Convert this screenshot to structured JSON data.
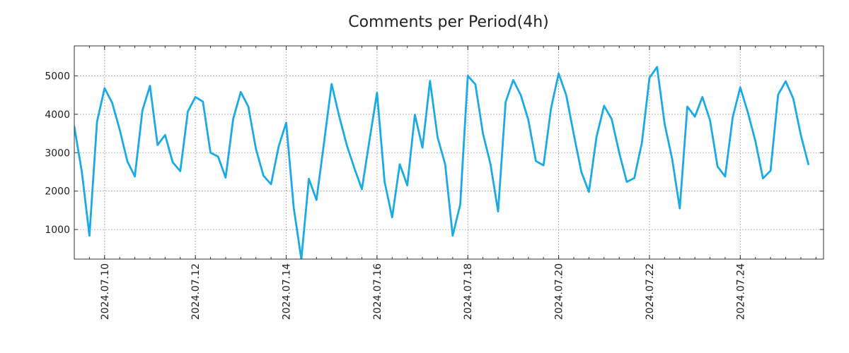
{
  "chart_data": {
    "type": "line",
    "title": "Comments per Period(4h)",
    "xlabel": "",
    "ylabel": "",
    "grid": true,
    "xlim": [
      "2024-07-09 08:00",
      "2024-07-25 20:00"
    ],
    "ylim": [
      230,
      5780
    ],
    "yticks": [
      1000,
      2000,
      3000,
      4000,
      5000
    ],
    "xticks": [
      "2024.07.10",
      "2024.07.12",
      "2024.07.14",
      "2024.07.16",
      "2024.07.18",
      "2024.07.20",
      "2024.07.22",
      "2024.07.24"
    ],
    "series": [
      {
        "name": "comments",
        "color": "#1aabe6",
        "interval_hours": 4,
        "start": "2024-07-09 08:00",
        "values": [
          3680,
          2500,
          840,
          3800,
          4680,
          4300,
          3600,
          2780,
          2380,
          4100,
          4740,
          3200,
          3460,
          2750,
          2520,
          4070,
          4450,
          4330,
          3000,
          2900,
          2350,
          3880,
          4580,
          4200,
          3100,
          2400,
          2180,
          3160,
          3780,
          1560,
          230,
          2320,
          1770,
          3260,
          4790,
          3950,
          3200,
          2600,
          2050,
          3320,
          4560,
          2240,
          1320,
          2700,
          2150,
          3990,
          3130,
          4870,
          3400,
          2700,
          840,
          1650,
          5000,
          4780,
          3500,
          2700,
          1470,
          4320,
          4890,
          4500,
          3850,
          2780,
          2670,
          4160,
          5060,
          4500,
          3480,
          2500,
          1980,
          3410,
          4220,
          3880,
          3000,
          2240,
          2340,
          3260,
          4950,
          5230,
          3750,
          2830,
          1550,
          4200,
          3940,
          4450,
          3850,
          2640,
          2380,
          3920,
          4700,
          4050,
          3300,
          2330,
          2530,
          4510,
          4860,
          4410,
          3460,
          2700
        ]
      }
    ]
  }
}
